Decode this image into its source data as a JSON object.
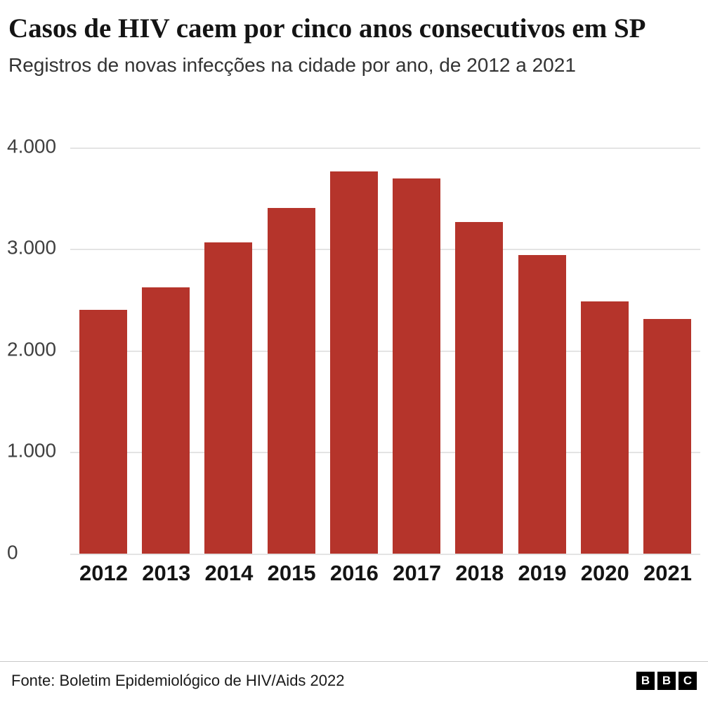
{
  "header": {
    "title": "Casos de HIV caem por cinco anos consecutivos em SP",
    "subtitle": "Registros de novas infecções na cidade por ano, de 2012 a 2021"
  },
  "chart_data": {
    "type": "bar",
    "title": "Casos de HIV caem por cinco anos consecutivos em SP",
    "subtitle": "Registros de novas infecções na cidade por ano, de 2012 a 2021",
    "categories": [
      "2012",
      "2013",
      "2014",
      "2015",
      "2016",
      "2017",
      "2018",
      "2019",
      "2020",
      "2021"
    ],
    "values": [
      2400,
      2620,
      3060,
      3400,
      3760,
      3690,
      3260,
      2940,
      2480,
      2310
    ],
    "xlabel": "",
    "ylabel": "",
    "ylim": [
      0,
      4000
    ],
    "yticks": [
      {
        "value": 4000,
        "label": "4.000"
      },
      {
        "value": 3000,
        "label": "3.000"
      },
      {
        "value": 2000,
        "label": "2.000"
      },
      {
        "value": 1000,
        "label": "1.000"
      },
      {
        "value": 0,
        "label": "0"
      }
    ],
    "bar_color": "#b5342b",
    "gridline_color": "#e4e4e4",
    "grid": true,
    "legend": false
  },
  "footer": {
    "source": "Fonte: Boletim Epidemiológico de HIV/Aids 2022",
    "logo_letters": [
      "B",
      "B",
      "C"
    ]
  }
}
